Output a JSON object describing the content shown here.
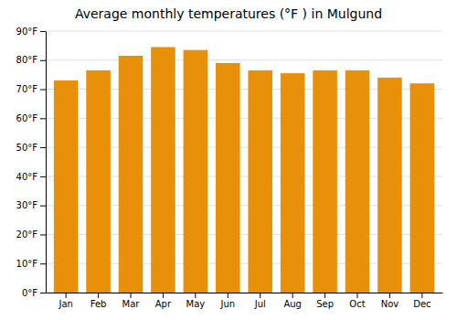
{
  "chart_data": {
    "type": "bar",
    "title": "Average monthly temperatures (°F ) in Mulgund",
    "categories": [
      "Jan",
      "Feb",
      "Mar",
      "Apr",
      "May",
      "Jun",
      "Jul",
      "Aug",
      "Sep",
      "Oct",
      "Nov",
      "Dec"
    ],
    "values": [
      73,
      76.5,
      81.5,
      84.5,
      83.5,
      79,
      76.5,
      75.5,
      76.5,
      76.5,
      74,
      72
    ],
    "color": "#E8900A",
    "ylim": [
      0,
      90
    ],
    "yticks": [
      {
        "value": 0,
        "label": "0°F"
      },
      {
        "value": 10,
        "label": "10°F"
      },
      {
        "value": 20,
        "label": "20°F"
      },
      {
        "value": 30,
        "label": "30°F"
      },
      {
        "value": 40,
        "label": "40°F"
      },
      {
        "value": 50,
        "label": "50°F"
      },
      {
        "value": 60,
        "label": "60°F"
      },
      {
        "value": 70,
        "label": "70°F"
      },
      {
        "value": 80,
        "label": "80°F"
      },
      {
        "value": 90,
        "label": "90°F"
      }
    ],
    "grid": true
  }
}
